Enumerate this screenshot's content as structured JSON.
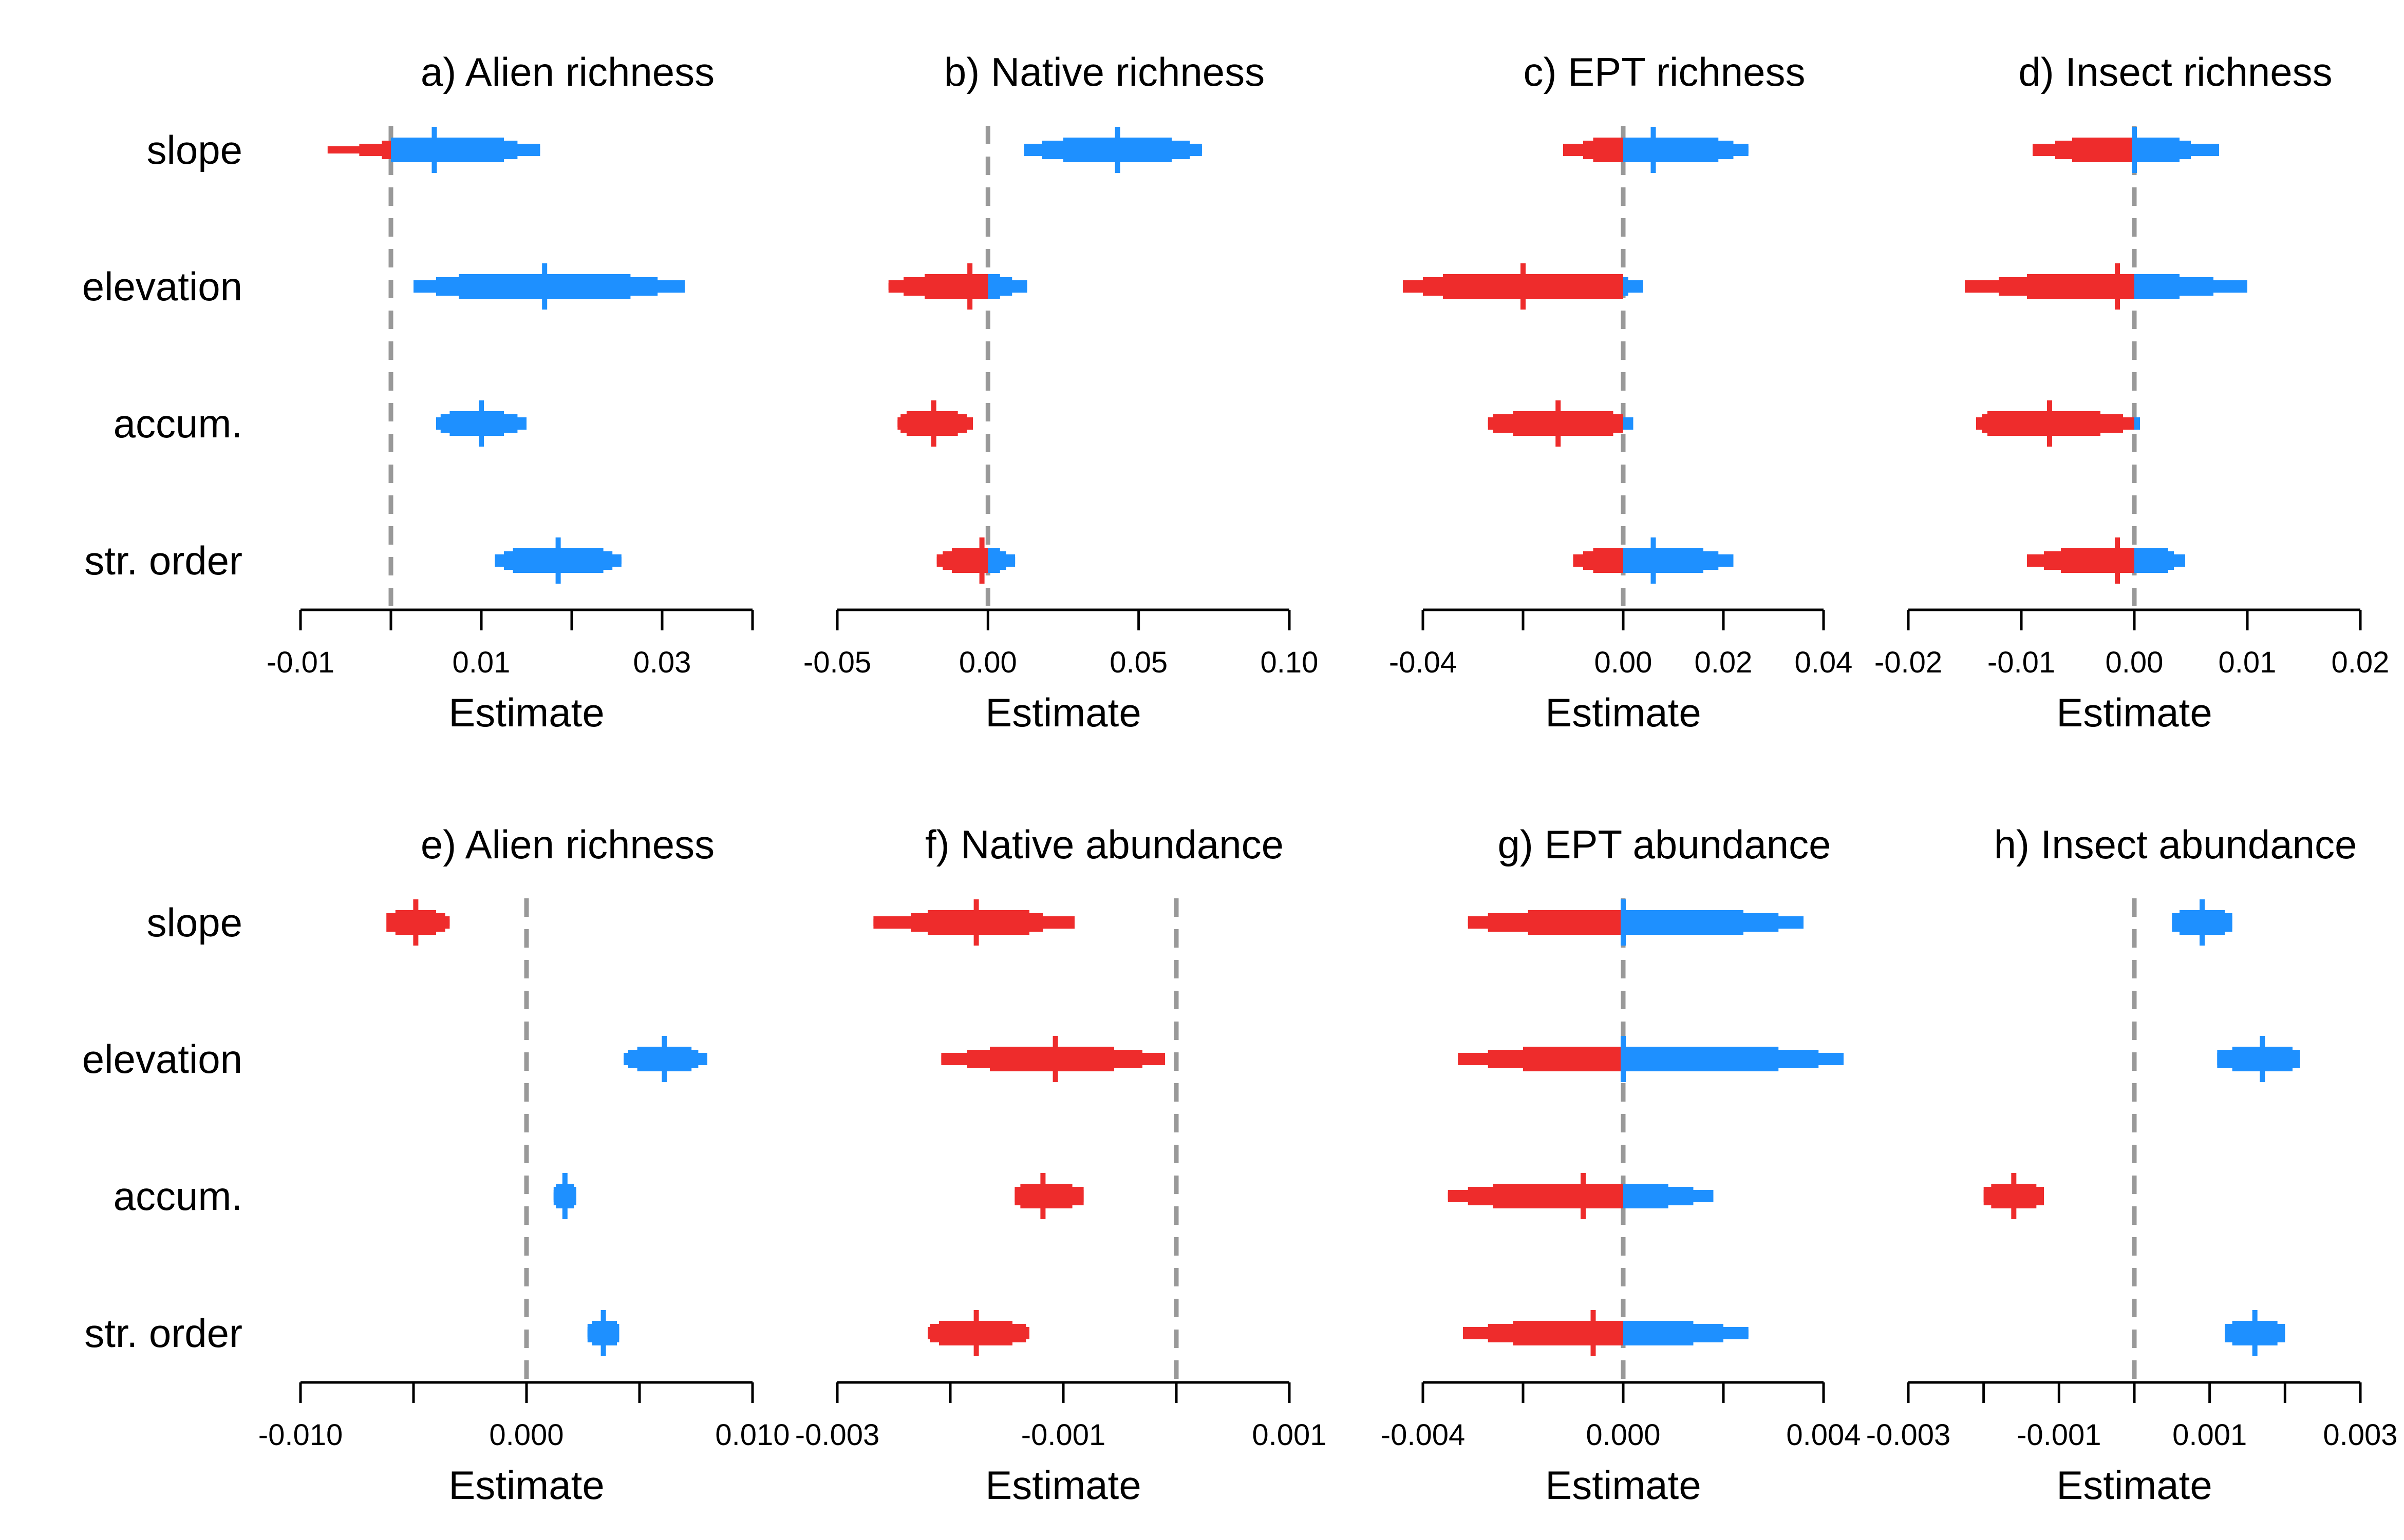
{
  "chart_data": {
    "type": "interval",
    "xlabel": "Estimate",
    "predictors": [
      "slope",
      "elevation",
      "accum.",
      "str. order"
    ],
    "colors": {
      "negative": "#EE2C2C",
      "positive": "#1E90FF",
      "zero_line": "#999999",
      "axis": "#000000"
    },
    "panels": [
      {
        "title": "a) Alien richness",
        "xlim": [
          -0.01,
          0.04
        ],
        "ticks": [
          -0.01,
          0.0,
          0.01,
          0.02,
          0.03,
          0.04
        ],
        "tick_labels": [
          "-0.01",
          "",
          "0.01",
          "",
          "0.03",
          ""
        ],
        "estimates": [
          {
            "predictor": "slope",
            "median": 0.0048,
            "ci50": [
              0.0,
              0.0125
            ],
            "ci80": [
              -0.001,
              0.014
            ],
            "ci95": [
              -0.0035,
              0.0165
            ],
            "ci99": [
              -0.007,
              0.0165
            ]
          },
          {
            "predictor": "elevation",
            "median": 0.017,
            "ci50": [
              0.0075,
              0.0265
            ],
            "ci80": [
              0.005,
              0.0295
            ],
            "ci95": [
              0.0025,
              0.0325
            ],
            "ci99": [
              0.0025,
              0.0325
            ]
          },
          {
            "predictor": "accum.",
            "median": 0.01,
            "ci50": [
              0.0065,
              0.0125
            ],
            "ci80": [
              0.0055,
              0.014
            ],
            "ci95": [
              0.005,
              0.015
            ],
            "ci99": [
              0.005,
              0.015
            ]
          },
          {
            "predictor": "str. order",
            "median": 0.0185,
            "ci50": [
              0.0135,
              0.0235
            ],
            "ci80": [
              0.0125,
              0.0245
            ],
            "ci95": [
              0.0115,
              0.0255
            ],
            "ci99": [
              0.0115,
              0.0255
            ]
          }
        ]
      },
      {
        "title": "b) Native richness",
        "xlim": [
          -0.05,
          0.1
        ],
        "ticks": [
          -0.05,
          0.0,
          0.05,
          0.1
        ],
        "tick_labels": [
          "-0.05",
          "0.00",
          "0.05",
          "0.10"
        ],
        "estimates": [
          {
            "predictor": "slope",
            "median": 0.043,
            "ci50": [
              0.025,
              0.061
            ],
            "ci80": [
              0.018,
              0.067
            ],
            "ci95": [
              0.012,
              0.071
            ],
            "ci99": [
              0.012,
              0.071
            ]
          },
          {
            "predictor": "elevation",
            "median": -0.006,
            "ci50": [
              -0.021,
              0.004
            ],
            "ci80": [
              -0.028,
              0.008
            ],
            "ci95": [
              -0.033,
              0.013
            ],
            "ci99": [
              -0.033,
              0.013
            ]
          },
          {
            "predictor": "accum.",
            "median": -0.018,
            "ci50": [
              -0.027,
              -0.01
            ],
            "ci80": [
              -0.029,
              -0.007
            ],
            "ci95": [
              -0.03,
              -0.005
            ],
            "ci99": [
              -0.03,
              -0.005
            ]
          },
          {
            "predictor": "str. order",
            "median": -0.002,
            "ci50": [
              -0.012,
              0.004
            ],
            "ci80": [
              -0.015,
              0.006
            ],
            "ci95": [
              -0.017,
              0.009
            ],
            "ci99": [
              -0.017,
              0.009
            ]
          }
        ]
      },
      {
        "title": "c) EPT richness",
        "xlim": [
          -0.04,
          0.04
        ],
        "ticks": [
          -0.04,
          -0.02,
          0.0,
          0.02,
          0.04
        ],
        "tick_labels": [
          "-0.04",
          "",
          "0.00",
          "0.02",
          "0.04"
        ],
        "estimates": [
          {
            "predictor": "slope",
            "median": 0.006,
            "ci50": [
              -0.006,
              0.019
            ],
            "ci80": [
              -0.008,
              0.022
            ],
            "ci95": [
              -0.012,
              0.025
            ],
            "ci99": [
              -0.012,
              0.025
            ]
          },
          {
            "predictor": "elevation",
            "median": -0.02,
            "ci50": [
              -0.036,
              0.0
            ],
            "ci80": [
              -0.04,
              0.001
            ],
            "ci95": [
              -0.044,
              0.004
            ],
            "ci99": [
              -0.044,
              0.004
            ]
          },
          {
            "predictor": "accum.",
            "median": -0.013,
            "ci50": [
              -0.022,
              -0.002
            ],
            "ci80": [
              -0.026,
              0.0
            ],
            "ci95": [
              -0.027,
              0.002
            ],
            "ci99": [
              -0.027,
              0.002
            ]
          },
          {
            "predictor": "str. order",
            "median": 0.006,
            "ci50": [
              -0.006,
              0.016
            ],
            "ci80": [
              -0.008,
              0.019
            ],
            "ci95": [
              -0.01,
              0.022
            ],
            "ci99": [
              -0.01,
              0.022
            ]
          }
        ]
      },
      {
        "title": "d) Insect richness",
        "xlim": [
          -0.02,
          0.02
        ],
        "ticks": [
          -0.02,
          -0.01,
          0.0,
          0.01,
          0.02
        ],
        "tick_labels": [
          "-0.02",
          "-0.01",
          "0.00",
          "0.01",
          "0.02"
        ],
        "estimates": [
          {
            "predictor": "slope",
            "median": 0.0,
            "ci50": [
              -0.0055,
              0.004
            ],
            "ci80": [
              -0.007,
              0.005
            ],
            "ci95": [
              -0.009,
              0.0075
            ],
            "ci99": [
              -0.009,
              0.0075
            ]
          },
          {
            "predictor": "elevation",
            "median": -0.0015,
            "ci50": [
              -0.0095,
              0.004
            ],
            "ci80": [
              -0.012,
              0.007
            ],
            "ci95": [
              -0.015,
              0.01
            ],
            "ci99": [
              -0.015,
              0.01
            ]
          },
          {
            "predictor": "accum.",
            "median": -0.0075,
            "ci50": [
              -0.013,
              -0.003
            ],
            "ci80": [
              -0.0135,
              -0.001
            ],
            "ci95": [
              -0.014,
              0.0005
            ],
            "ci99": [
              -0.014,
              0.0005
            ]
          },
          {
            "predictor": "str. order",
            "median": -0.0015,
            "ci50": [
              -0.0065,
              0.003
            ],
            "ci80": [
              -0.008,
              0.0035
            ],
            "ci95": [
              -0.0095,
              0.0045
            ],
            "ci99": [
              -0.0095,
              0.0045
            ]
          }
        ]
      },
      {
        "title": "e) Alien richness",
        "xlim": [
          -0.01,
          0.01
        ],
        "ticks": [
          -0.01,
          -0.005,
          0.0,
          0.005,
          0.01
        ],
        "tick_labels": [
          "-0.010",
          "",
          "0.000",
          "",
          "0.010"
        ],
        "estimates": [
          {
            "predictor": "slope",
            "median": -0.0049,
            "ci50": [
              -0.0058,
              -0.004
            ],
            "ci80": [
              -0.0062,
              -0.0036
            ],
            "ci95": [
              -0.006,
              -0.0034
            ],
            "ci99": [
              -0.006,
              -0.0034
            ]
          },
          {
            "predictor": "elevation",
            "median": 0.0061,
            "ci50": [
              0.0049,
              0.0073
            ],
            "ci80": [
              0.0045,
              0.0076
            ],
            "ci95": [
              0.0043,
              0.008
            ],
            "ci99": [
              0.0043,
              0.008
            ]
          },
          {
            "predictor": "accum.",
            "median": 0.0017,
            "ci50": [
              0.0013,
              0.0021
            ],
            "ci80": [
              0.0012,
              0.0022
            ],
            "ci95": [
              0.0012,
              0.0022
            ],
            "ci99": [
              0.0012,
              0.0022
            ]
          },
          {
            "predictor": "str. order",
            "median": 0.0034,
            "ci50": [
              0.0029,
              0.004
            ],
            "ci80": [
              0.0027,
              0.0041
            ],
            "ci95": [
              0.0027,
              0.0041
            ],
            "ci99": [
              0.0027,
              0.0041
            ]
          }
        ]
      },
      {
        "title": "f) Native abundance",
        "xlim": [
          -0.003,
          0.001
        ],
        "ticks": [
          -0.003,
          -0.002,
          -0.001,
          0.0,
          0.001
        ],
        "tick_labels": [
          "-0.003",
          "",
          "-0.001",
          "",
          "0.001"
        ],
        "estimates": [
          {
            "predictor": "slope",
            "median": -0.00177,
            "ci50": [
              -0.0022,
              -0.0013
            ],
            "ci80": [
              -0.00235,
              -0.00118
            ],
            "ci95": [
              -0.00268,
              -0.0009
            ],
            "ci99": [
              -0.00268,
              -0.0009
            ]
          },
          {
            "predictor": "elevation",
            "median": -0.00107,
            "ci50": [
              -0.00165,
              -0.00055
            ],
            "ci80": [
              -0.00185,
              -0.0003
            ],
            "ci95": [
              -0.00208,
              -0.0001
            ],
            "ci99": [
              -0.00208,
              -0.0001
            ]
          },
          {
            "predictor": "accum.",
            "median": -0.00118,
            "ci50": [
              -0.00138,
              -0.00092
            ],
            "ci80": [
              -0.00143,
              -0.00082
            ],
            "ci95": [
              -0.00143,
              -0.00082
            ]
          },
          {
            "predictor": "str. order",
            "median": -0.00177,
            "ci50": [
              -0.0021,
              -0.00145
            ],
            "ci80": [
              -0.00218,
              -0.00133
            ],
            "ci95": [
              -0.0022,
              -0.0013
            ]
          }
        ]
      },
      {
        "title": "g) EPT abundance",
        "xlim": [
          -0.004,
          0.004
        ],
        "ticks": [
          -0.004,
          -0.002,
          0.0,
          0.002,
          0.004
        ],
        "tick_labels": [
          "-0.004",
          "",
          "0.000",
          "",
          "0.004"
        ],
        "estimates": [
          {
            "predictor": "slope",
            "median": 0.0,
            "ci50": [
              -0.0019,
              0.0024
            ],
            "ci80": [
              -0.0027,
              0.0031
            ],
            "ci95": [
              -0.0031,
              0.0036
            ],
            "ci99": [
              -0.0031,
              0.0036
            ]
          },
          {
            "predictor": "elevation",
            "median": 0.0,
            "ci50": [
              -0.002,
              0.0031
            ],
            "ci80": [
              -0.0027,
              0.0039
            ],
            "ci95": [
              -0.0033,
              0.0044
            ],
            "ci99": [
              -0.0033,
              0.0044
            ]
          },
          {
            "predictor": "accum.",
            "median": -0.0008,
            "ci50": [
              -0.0026,
              0.0009
            ],
            "ci80": [
              -0.0031,
              0.0014
            ],
            "ci95": [
              -0.0035,
              0.0018
            ],
            "ci99": [
              -0.0035,
              0.0018
            ]
          },
          {
            "predictor": "str. order",
            "median": -0.0006,
            "ci50": [
              -0.0022,
              0.0014
            ],
            "ci80": [
              -0.0027,
              0.002
            ],
            "ci95": [
              -0.0032,
              0.0025
            ],
            "ci99": [
              -0.0032,
              0.0025
            ]
          }
        ]
      },
      {
        "title": "h) Insect abundance",
        "xlim": [
          -0.003,
          0.003
        ],
        "ticks": [
          -0.003,
          -0.002,
          -0.001,
          0.0,
          0.001,
          0.002,
          0.003
        ],
        "tick_labels": [
          "-0.003",
          "",
          "-0.001",
          "",
          "0.001",
          "",
          "0.003"
        ],
        "estimates": [
          {
            "predictor": "slope",
            "median": 0.0009,
            "ci50": [
              0.0006,
              0.0012
            ],
            "ci80": [
              0.0005,
              0.0013
            ],
            "ci95": [
              0.0005,
              0.0013
            ]
          },
          {
            "predictor": "elevation",
            "median": 0.0017,
            "ci50": [
              0.0013,
              0.0021
            ],
            "ci80": [
              0.0011,
              0.0022
            ],
            "ci95": [
              0.0011,
              0.0022
            ]
          },
          {
            "predictor": "accum.",
            "median": -0.0016,
            "ci50": [
              -0.0019,
              -0.0013
            ],
            "ci80": [
              -0.002,
              -0.0012
            ],
            "ci95": [
              -0.002,
              -0.0012
            ]
          },
          {
            "predictor": "str. order",
            "median": 0.0016,
            "ci50": [
              0.0013,
              0.0019
            ],
            "ci80": [
              0.0012,
              0.002
            ],
            "ci95": [
              0.0012,
              0.002
            ]
          }
        ]
      }
    ]
  }
}
